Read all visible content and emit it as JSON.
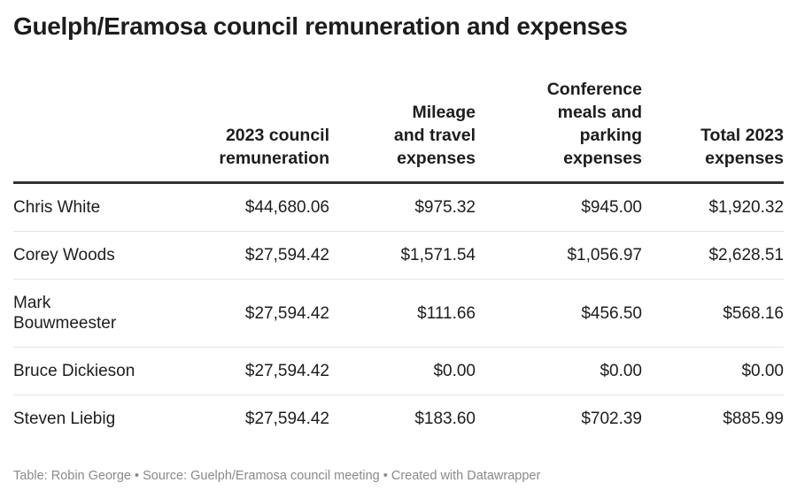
{
  "title": "Guelph/Eramosa council remuneration and expenses",
  "chart_data": {
    "type": "table",
    "title": "Guelph/Eramosa council remuneration and expenses",
    "columns": [
      "",
      "2023 council remuneration",
      "Mileage and travel expenses",
      "Conference meals and parking expenses",
      "Total 2023 expenses"
    ],
    "rows": [
      [
        "Chris White",
        "$44,680.06",
        "$975.32",
        "$945.00",
        "$1,920.32"
      ],
      [
        "Corey Woods",
        "$27,594.42",
        "$1,571.54",
        "$1,056.97",
        "$2,628.51"
      ],
      [
        "Mark Bouwmeester",
        "$27,594.42",
        "$111.66",
        "$456.50",
        "$568.16"
      ],
      [
        "Bruce Dickieson",
        "$27,594.42",
        "$0.00",
        "$0.00",
        "$0.00"
      ],
      [
        "Steven Liebig",
        "$27,594.42",
        "$183.60",
        "$702.39",
        "$885.99"
      ]
    ]
  },
  "footer": "Table: Robin George • Source: Guelph/Eramosa council meeting • Created with Datawrapper"
}
